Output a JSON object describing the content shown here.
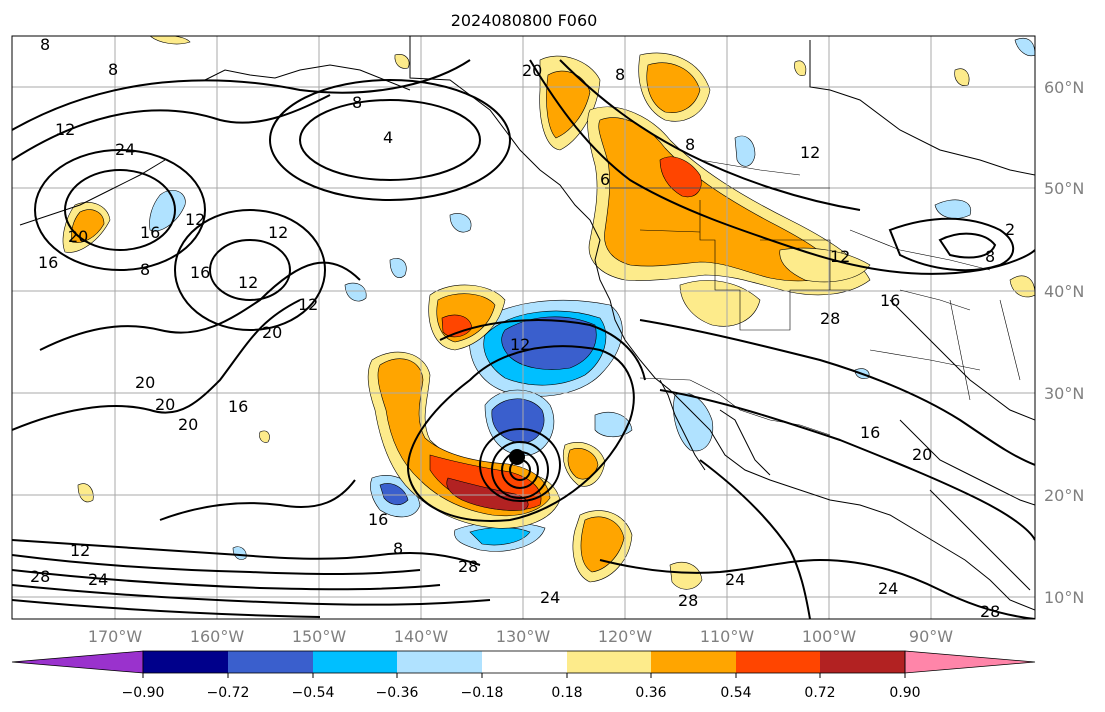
{
  "title": "2024080800 F060",
  "lat_labels": [
    "60°N",
    "50°N",
    "40°N",
    "30°N",
    "20°N",
    "10°N"
  ],
  "lon_labels": [
    "170°W",
    "160°W",
    "150°W",
    "140°W",
    "130°W",
    "120°W",
    "110°W",
    "100°W",
    "90°W"
  ],
  "colorbar": {
    "colors": [
      "#9a32cd",
      "#00008b",
      "#3a5fcd",
      "#00bfff",
      "#b0e2ff",
      "#ffffff",
      "#fdeb8b",
      "#ffa500",
      "#ff4500",
      "#b22222",
      "#ff85a9"
    ],
    "tick_labels": [
      "−0.90",
      "−0.72",
      "−0.54",
      "−0.36",
      "−0.18",
      "0.18",
      "0.36",
      "0.54",
      "0.72",
      "0.90"
    ]
  },
  "contour_labels": [
    "8",
    "8",
    "12",
    "24",
    "12",
    "16",
    "20",
    "8",
    "16",
    "12",
    "16",
    "20",
    "12",
    "20",
    "16",
    "20",
    "20",
    "12",
    "8",
    "4",
    "20",
    "8",
    "6",
    "12",
    "8",
    "12",
    "16",
    "28",
    "16",
    "20",
    "24",
    "28",
    "24",
    "28",
    "24",
    "12",
    "28",
    "8",
    "16",
    "24",
    "28",
    "2",
    "8",
    "12"
  ],
  "feature_names": {
    "storm_center": "storm-center-marker"
  }
}
